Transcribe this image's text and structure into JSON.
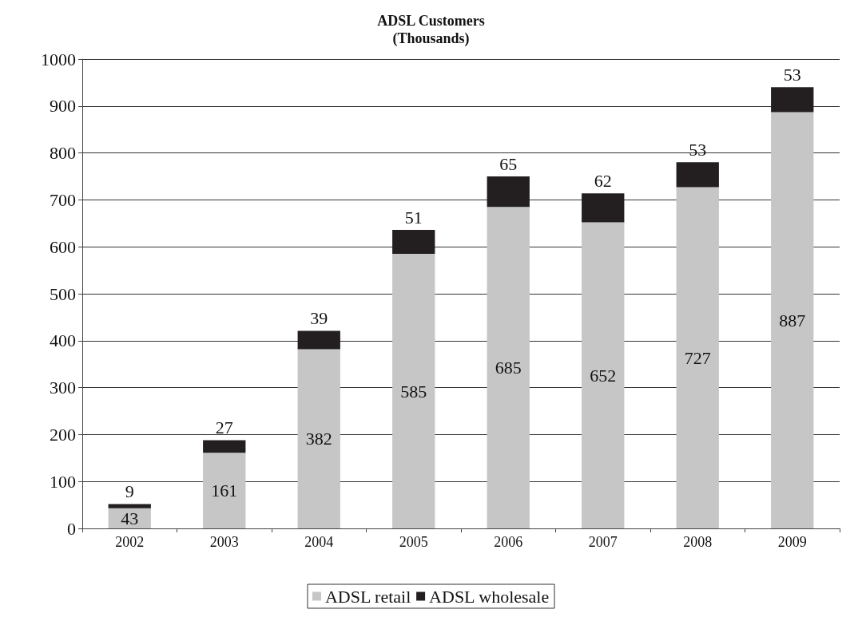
{
  "chart_data": {
    "type": "bar",
    "title": "ADSL Customers\n(Thousands)",
    "categories": [
      "2002",
      "2003",
      "2004",
      "2005",
      "2006",
      "2007",
      "2008",
      "2009"
    ],
    "series": [
      {
        "name": "ADSL retail",
        "color": "#c6c6c6",
        "values": [
          43,
          161,
          382,
          585,
          685,
          652,
          727,
          887
        ]
      },
      {
        "name": "ADSL wholesale",
        "color": "#231f20",
        "values": [
          9,
          27,
          39,
          51,
          65,
          62,
          53,
          53
        ]
      }
    ],
    "stacked": true,
    "data_labels": true,
    "ylim": [
      0,
      1000
    ],
    "yticks": [
      0,
      100,
      200,
      300,
      400,
      500,
      600,
      700,
      800,
      900,
      1000
    ],
    "grid": "y",
    "legend": "bottom"
  }
}
